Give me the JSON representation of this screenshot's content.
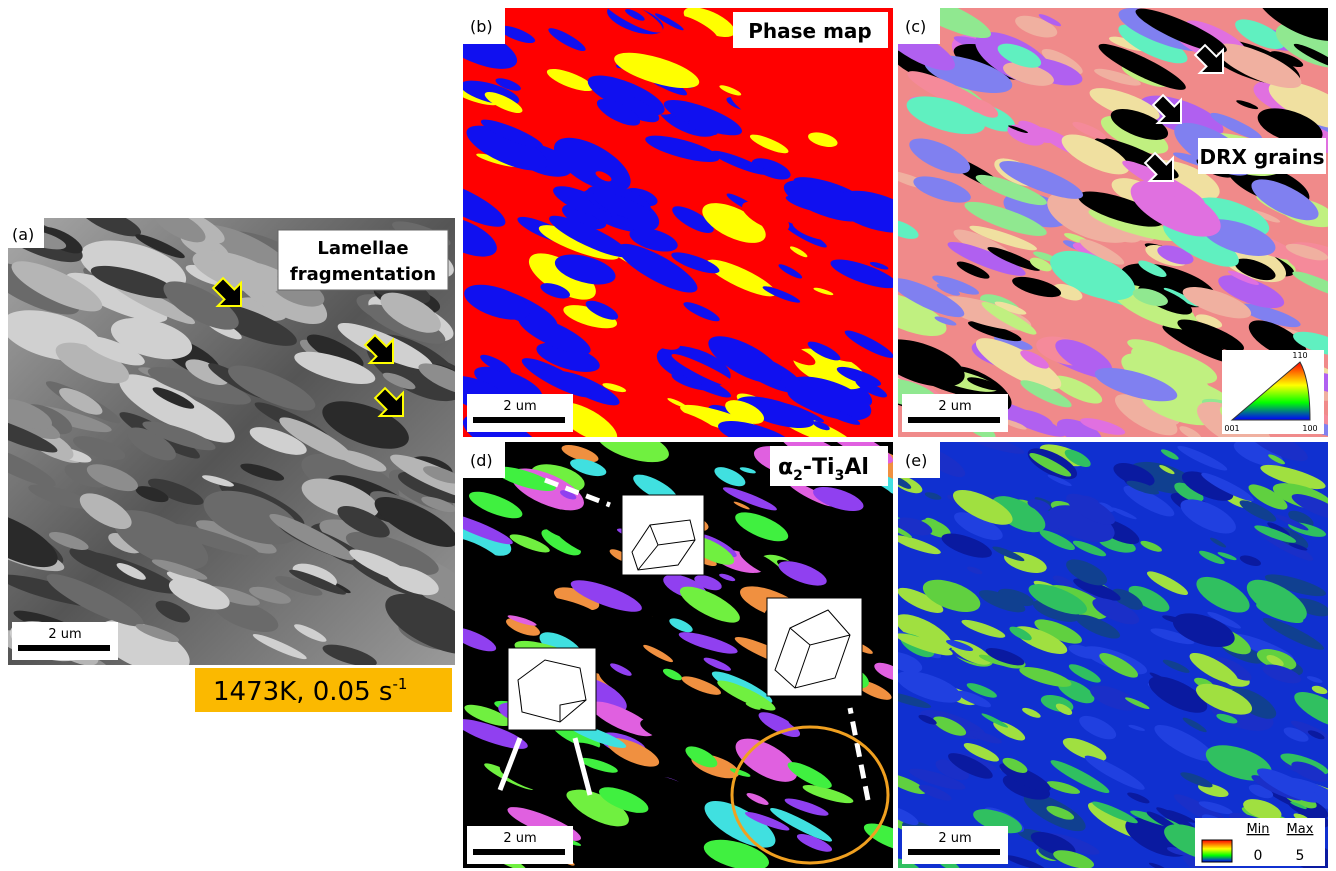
{
  "panels": [
    {
      "label": "(a)",
      "annotation": [
        "Lamellae",
        "fragmentation"
      ],
      "scale_bar": "2 um"
    },
    {
      "label": "(b)",
      "annotation": "Phase map",
      "scale_bar": "2 um"
    },
    {
      "label": "(c)",
      "annotation": "DRX grains",
      "scale_bar": "2 um",
      "ipf_key": {
        "top": "110",
        "left": "001",
        "right": "100"
      }
    },
    {
      "label": "(d)",
      "annotation": {
        "parts": [
          "α",
          "2",
          "-Ti",
          "3",
          "Al"
        ]
      },
      "scale_bar": "2 um"
    },
    {
      "label": "(e)",
      "scale_bar": "2 um",
      "legend": {
        "min_label": "Min",
        "max_label": "Max",
        "min": 0,
        "max": 5
      }
    }
  ],
  "condition": {
    "text": "1473K, 0.05 s",
    "superscript": "-1"
  }
}
